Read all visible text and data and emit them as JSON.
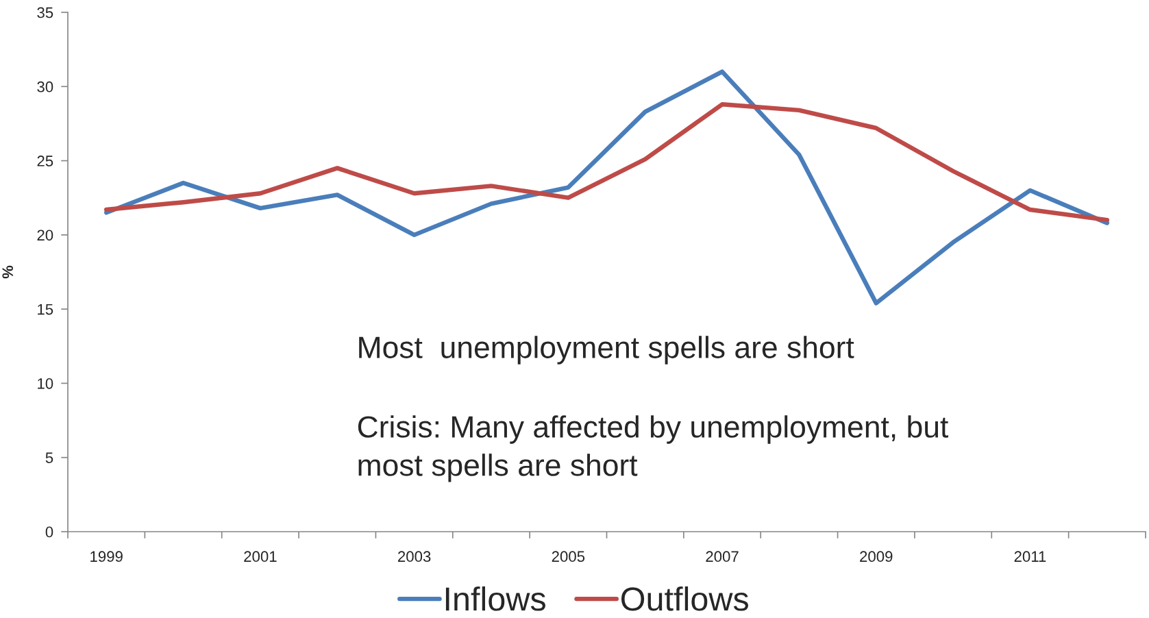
{
  "chart_data": {
    "type": "line",
    "ylabel": "%",
    "categories": [
      "1999",
      null,
      "2001",
      null,
      "2003",
      null,
      "2005",
      null,
      "2007",
      null,
      "2009",
      null,
      "2011",
      null
    ],
    "series": [
      {
        "name": "Inflows",
        "color": "#4a7ebb",
        "values": [
          21.5,
          23.5,
          21.8,
          22.7,
          20.0,
          22.1,
          23.2,
          28.3,
          31.0,
          25.4,
          15.4,
          19.5,
          23.0,
          20.8
        ]
      },
      {
        "name": "Outflows",
        "color": "#be4b48",
        "values": [
          21.7,
          22.2,
          22.8,
          24.5,
          22.8,
          23.3,
          22.5,
          25.1,
          28.8,
          28.4,
          27.2,
          24.3,
          21.7,
          21.0
        ]
      }
    ],
    "ylim": [
      0,
      35
    ],
    "yticks": [
      0,
      5,
      10,
      15,
      20,
      25,
      30,
      35
    ],
    "grid": false,
    "legend": "bottom",
    "marker": "none",
    "line_style": "solid",
    "annotations": [
      "Most  unemployment spells are short",
      "Crisis: Many affected by unemployment, but\nmost spells are short"
    ]
  }
}
